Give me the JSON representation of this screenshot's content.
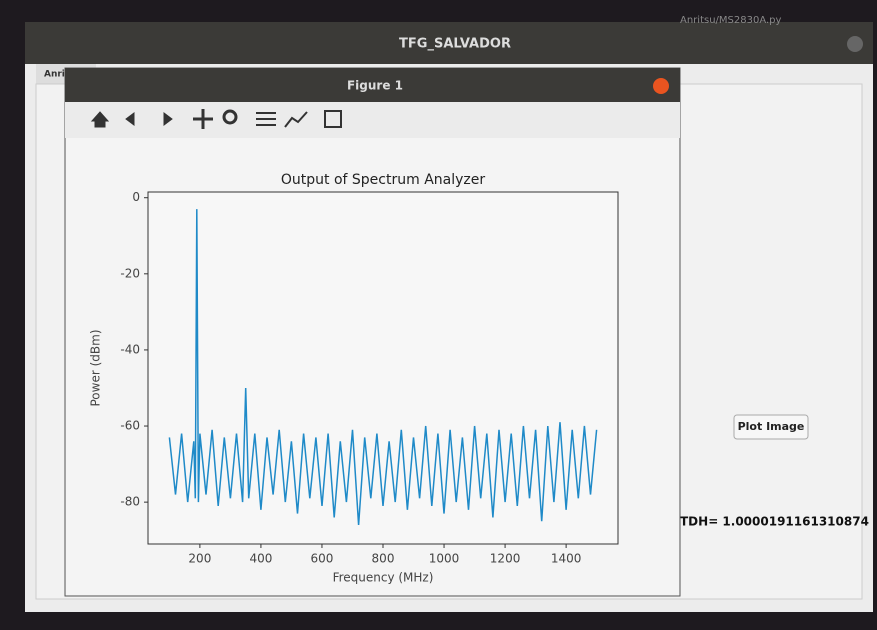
{
  "window": {
    "title": "TFG_SALVADOR",
    "tab": "Anrit",
    "file": "Anritsu/MS2830A.py"
  },
  "figure_window": {
    "title": "Figure 1"
  },
  "button": "Plot Image",
  "result": "TDH= 1.0000191161310874",
  "chart_data": {
    "type": "line",
    "title": "Output of Spectrum Analyzer",
    "x_label": "Frequency (MHz)",
    "y_label": "Power (dBm)",
    "color": "#1f8ac8",
    "x": [
      100,
      120,
      140,
      160,
      180,
      185,
      190,
      195,
      200,
      220,
      240,
      260,
      280,
      300,
      320,
      340,
      350,
      360,
      380,
      400,
      420,
      440,
      460,
      480,
      500,
      520,
      540,
      560,
      580,
      600,
      620,
      640,
      660,
      680,
      700,
      720,
      740,
      760,
      780,
      800,
      820,
      840,
      860,
      880,
      900,
      920,
      940,
      960,
      980,
      1000,
      1020,
      1040,
      1060,
      1080,
      1100,
      1120,
      1140,
      1160,
      1180,
      1200,
      1220,
      1240,
      1260,
      1280,
      1300,
      1320,
      1340,
      1360,
      1380,
      1400,
      1420,
      1440,
      1460,
      1480,
      1500
    ],
    "values": [
      -63,
      -78,
      -62,
      -80,
      -64,
      -79,
      -3,
      -80,
      -62,
      -78,
      -61,
      -81,
      -63,
      -79,
      -62,
      -80,
      -50,
      -79,
      -62,
      -82,
      -63,
      -78,
      -61,
      -80,
      -64,
      -83,
      -62,
      -79,
      -63,
      -81,
      -62,
      -84,
      -64,
      -80,
      -61,
      -86,
      -63,
      -79,
      -62,
      -81,
      -64,
      -80,
      -61,
      -82,
      -63,
      -79,
      -60,
      -81,
      -62,
      -83,
      -61,
      -80,
      -63,
      -82,
      -60,
      -79,
      -62,
      -84,
      -61,
      -80,
      -62,
      -81,
      -60,
      -79,
      -61,
      -85,
      -60,
      -80,
      -59,
      -82,
      -61,
      -79,
      -60,
      -78,
      -61
    ],
    "xlim": [
      30,
      1570
    ],
    "ylim": [
      -91,
      1.5
    ],
    "xticks": [
      200,
      400,
      600,
      800,
      1000,
      1200,
      1400
    ],
    "yticks": [
      0,
      -20,
      -40,
      -60,
      -80
    ]
  }
}
